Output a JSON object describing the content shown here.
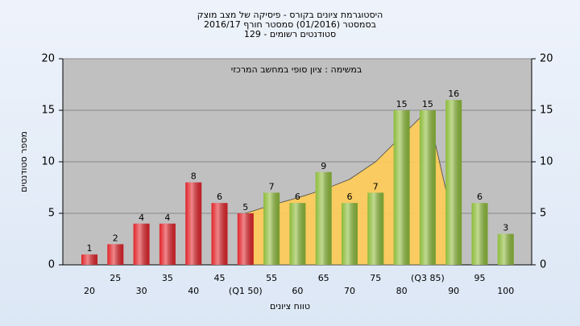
{
  "chart_data": {
    "type": "bar",
    "title_lines": [
      "היסטוגרמת ציונים בקורס - פיסיקה של מצב מוצק",
      "בסמסטר  (01/2016)  סמסטר חורף 2016/17",
      "סטודנטים רשומים - 129"
    ],
    "annotation": "במשימה : ציון סופי במחשב המרכזי",
    "x_label": "טווח ציונים",
    "y_label": "מספר סטודנטים",
    "categories": [
      "20",
      "25",
      "30",
      "35",
      "40",
      "45",
      "(Q1 50)",
      "55",
      "60",
      "65",
      "70",
      "75",
      "80",
      "(Q3 85)",
      "90",
      "95",
      "100"
    ],
    "values": [
      1,
      2,
      4,
      4,
      8,
      6,
      5,
      7,
      6,
      9,
      6,
      7,
      15,
      15,
      16,
      6,
      3
    ],
    "bar_colors": [
      "#e0242a",
      "#e0242a",
      "#e0242a",
      "#e0242a",
      "#e0242a",
      "#e0242a",
      "#e0242a",
      "#8dbb3a",
      "#8dbb3a",
      "#8dbb3a",
      "#8dbb3a",
      "#8dbb3a",
      "#8dbb3a",
      "#8dbb3a",
      "#8dbb3a",
      "#8dbb3a",
      "#8dbb3a"
    ],
    "area": {
      "color": "#ffcc55",
      "values": [
        null,
        null,
        null,
        null,
        null,
        null,
        5,
        5.8,
        6.5,
        7.3,
        8.3,
        10,
        12.5,
        15,
        4,
        null,
        null
      ]
    },
    "ylim": [
      0,
      20
    ],
    "yticks": [
      0,
      5,
      10,
      15,
      20
    ],
    "grid": true
  }
}
